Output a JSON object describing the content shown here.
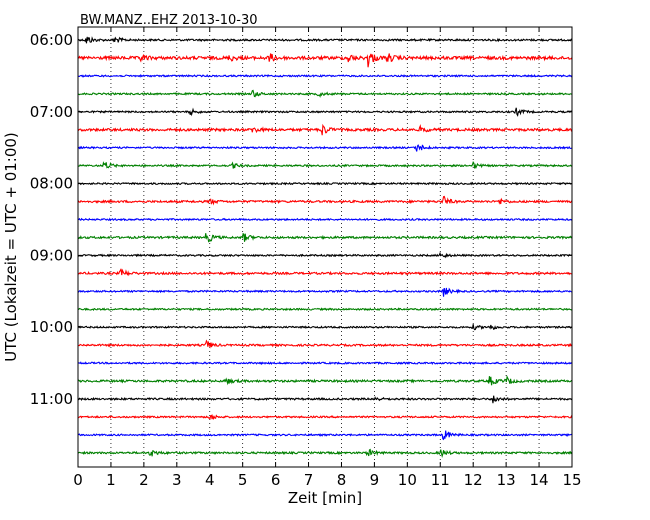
{
  "chart_data": {
    "type": "line",
    "title": "BW.MANZ..EHZ 2013-10-30",
    "xlabel": "Zeit  [min]",
    "ylabel": "UTC (Lokalzeit = UTC + 01:00)",
    "xlim": [
      0,
      15
    ],
    "x_ticks": [
      0,
      1,
      2,
      3,
      4,
      5,
      6,
      7,
      8,
      9,
      10,
      11,
      12,
      13,
      14,
      15
    ],
    "grid": "vertical dotted at each minute",
    "trace_interval_minutes": 15,
    "y_tick_labels": [
      "06:00",
      "07:00",
      "08:00",
      "09:00",
      "10:00",
      "11:00"
    ],
    "traces": [
      {
        "start": "06:00",
        "color": "#000000",
        "amp": 0.9,
        "events": [
          {
            "t": 0.25,
            "a": 5
          },
          {
            "t": 1.1,
            "a": 4
          }
        ]
      },
      {
        "start": "06:15",
        "color": "#ff0000",
        "amp": 1.5,
        "events": [
          {
            "t": 1.9,
            "a": 3
          },
          {
            "t": 4.6,
            "a": 3
          },
          {
            "t": 5.8,
            "a": 4.5
          },
          {
            "t": 8.2,
            "a": 4
          },
          {
            "t": 8.8,
            "a": 9
          },
          {
            "t": 9.4,
            "a": 4.5
          }
        ]
      },
      {
        "start": "06:30",
        "color": "#0000ff",
        "amp": 0.8,
        "events": []
      },
      {
        "start": "06:45",
        "color": "#008000",
        "amp": 0.8,
        "events": [
          {
            "t": 5.3,
            "a": 4
          },
          {
            "t": 7.3,
            "a": 2.5
          }
        ]
      },
      {
        "start": "07:00",
        "color": "#000000",
        "amp": 0.8,
        "events": [
          {
            "t": 3.4,
            "a": 3
          },
          {
            "t": 13.3,
            "a": 4
          }
        ]
      },
      {
        "start": "07:15",
        "color": "#ff0000",
        "amp": 1.2,
        "events": [
          {
            "t": 5.3,
            "a": 3
          },
          {
            "t": 7.4,
            "a": 6
          },
          {
            "t": 10.4,
            "a": 3
          }
        ]
      },
      {
        "start": "07:30",
        "color": "#0000ff",
        "amp": 0.8,
        "events": [
          {
            "t": 10.3,
            "a": 5
          }
        ]
      },
      {
        "start": "07:45",
        "color": "#008000",
        "amp": 0.8,
        "events": [
          {
            "t": 0.8,
            "a": 5
          },
          {
            "t": 4.7,
            "a": 2.5
          },
          {
            "t": 12,
            "a": 3
          }
        ]
      },
      {
        "start": "08:00",
        "color": "#000000",
        "amp": 0.8,
        "events": []
      },
      {
        "start": "08:15",
        "color": "#ff0000",
        "amp": 1.0,
        "events": [
          {
            "t": 4.0,
            "a": 2.5
          },
          {
            "t": 11.1,
            "a": 5
          },
          {
            "t": 12.8,
            "a": 2.5
          }
        ]
      },
      {
        "start": "08:30",
        "color": "#0000ff",
        "amp": 0.8,
        "events": []
      },
      {
        "start": "08:45",
        "color": "#008000",
        "amp": 1.0,
        "events": [
          {
            "t": 3.9,
            "a": 6
          },
          {
            "t": 5.0,
            "a": 5
          }
        ]
      },
      {
        "start": "09:00",
        "color": "#000000",
        "amp": 0.8,
        "events": [
          {
            "t": 11.0,
            "a": 3
          }
        ]
      },
      {
        "start": "09:15",
        "color": "#ff0000",
        "amp": 1.0,
        "events": [
          {
            "t": 1.3,
            "a": 4
          }
        ]
      },
      {
        "start": "09:30",
        "color": "#0000ff",
        "amp": 0.8,
        "events": [
          {
            "t": 11.1,
            "a": 5
          }
        ]
      },
      {
        "start": "09:45",
        "color": "#008000",
        "amp": 0.8,
        "events": []
      },
      {
        "start": "10:00",
        "color": "#000000",
        "amp": 0.8,
        "events": [
          {
            "t": 12.0,
            "a": 2.5
          },
          {
            "t": 12.5,
            "a": 3
          }
        ]
      },
      {
        "start": "10:15",
        "color": "#ff0000",
        "amp": 0.9,
        "events": [
          {
            "t": 3.9,
            "a": 4
          }
        ]
      },
      {
        "start": "10:30",
        "color": "#0000ff",
        "amp": 0.8,
        "events": []
      },
      {
        "start": "10:45",
        "color": "#008000",
        "amp": 1.0,
        "events": [
          {
            "t": 4.5,
            "a": 3
          },
          {
            "t": 12.5,
            "a": 5
          },
          {
            "t": 13.0,
            "a": 4
          }
        ]
      },
      {
        "start": "11:00",
        "color": "#000000",
        "amp": 0.9,
        "events": [
          {
            "t": 12.6,
            "a": 4
          },
          {
            "t": 9.0,
            "a": 2
          }
        ]
      },
      {
        "start": "11:15",
        "color": "#ff0000",
        "amp": 0.8,
        "events": [
          {
            "t": 4.0,
            "a": 3
          }
        ]
      },
      {
        "start": "11:30",
        "color": "#0000ff",
        "amp": 0.8,
        "events": [
          {
            "t": 11.1,
            "a": 6
          }
        ]
      },
      {
        "start": "11:45",
        "color": "#008000",
        "amp": 0.9,
        "events": [
          {
            "t": 2.2,
            "a": 4
          },
          {
            "t": 8.8,
            "a": 4
          },
          {
            "t": 11.0,
            "a": 4
          }
        ]
      }
    ]
  }
}
